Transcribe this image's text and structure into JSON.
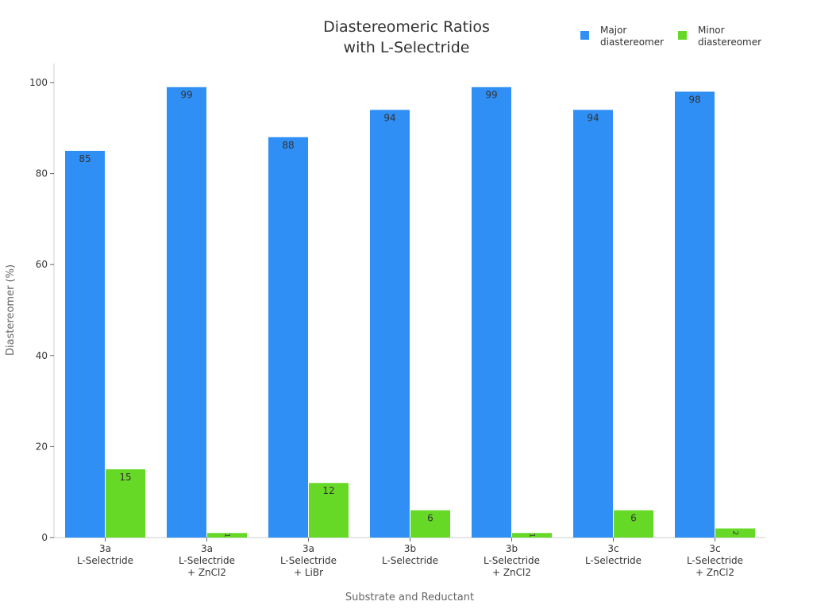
{
  "chart_data": {
    "type": "bar",
    "title": [
      "Diastereomeric Ratios",
      "with L-Selectride"
    ],
    "xlabel": "Substrate and Reductant",
    "ylabel": "Diastereomer (%)",
    "ylim": [
      0,
      100
    ],
    "yticks": [
      0,
      20,
      40,
      60,
      80,
      100
    ],
    "categories": [
      [
        "3a",
        "L-Selectride"
      ],
      [
        "3a",
        "L-Selectride",
        "+ ZnCl2"
      ],
      [
        "3a",
        "L-Selectride",
        "+ LiBr"
      ],
      [
        "3b",
        "L-Selectride"
      ],
      [
        "3b",
        "L-Selectride",
        "+ ZnCl2"
      ],
      [
        "3c",
        "L-Selectride"
      ],
      [
        "3c",
        "L-Selectride",
        "+ ZnCl2"
      ]
    ],
    "series": [
      {
        "name": "Major diastereomer",
        "legend": [
          "Major",
          "diastereomer"
        ],
        "color": "#2f8ff5",
        "values": [
          85,
          99,
          88,
          94,
          99,
          94,
          98
        ]
      },
      {
        "name": "Minor diastereomer",
        "legend": [
          "Minor",
          "diastereomer"
        ],
        "color": "#66d926",
        "values": [
          15,
          1,
          12,
          6,
          1,
          6,
          2
        ]
      }
    ],
    "grid": false,
    "legend_position": "top-right"
  }
}
